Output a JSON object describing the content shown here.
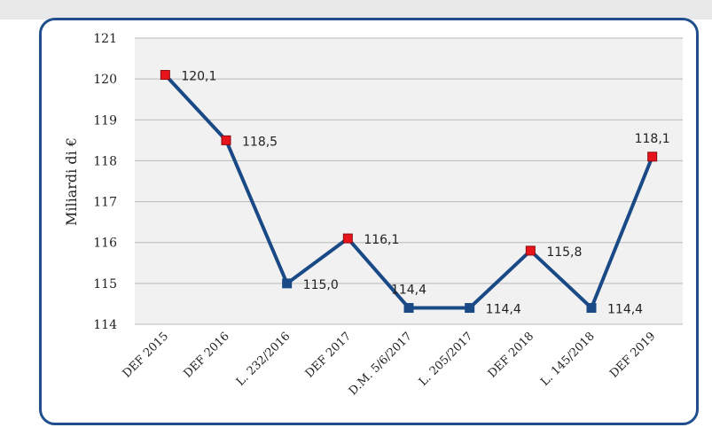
{
  "chart_data": {
    "type": "line",
    "categories": [
      "DEF 2015",
      "DEF 2016",
      "L. 232/2016",
      "DEF 2017",
      "D.M. 5/6/2017",
      "L. 205/2017",
      "DEF 2018",
      "L. 145/2018",
      "DEF 2019"
    ],
    "values": [
      120.1,
      118.5,
      115.0,
      116.1,
      114.4,
      114.4,
      115.8,
      114.4,
      118.1
    ],
    "data_labels": [
      "120,1",
      "118,5",
      "115,0",
      "116,1",
      "114,4",
      "114,4",
      "115,8",
      "114,4",
      "118,1"
    ],
    "marker_types": [
      "red",
      "red",
      "blue",
      "red",
      "blue",
      "blue",
      "red",
      "blue",
      "red"
    ],
    "label_positions": [
      "right",
      "right",
      "right",
      "right",
      "above",
      "right",
      "right",
      "right",
      "above"
    ],
    "ylabel": "Miliardi di €",
    "xlabel": "",
    "ylim": [
      114,
      121
    ],
    "yticks": [
      114,
      115,
      116,
      117,
      118,
      119,
      120,
      121
    ],
    "grid": true,
    "colors": {
      "line": "#1a4a86",
      "marker_red": "#e8141b",
      "marker_blue": "#1a4a86",
      "frame": "#1f4f8c",
      "plot_bg": "#f1f1f1",
      "grid": "#b9b9b9"
    }
  }
}
